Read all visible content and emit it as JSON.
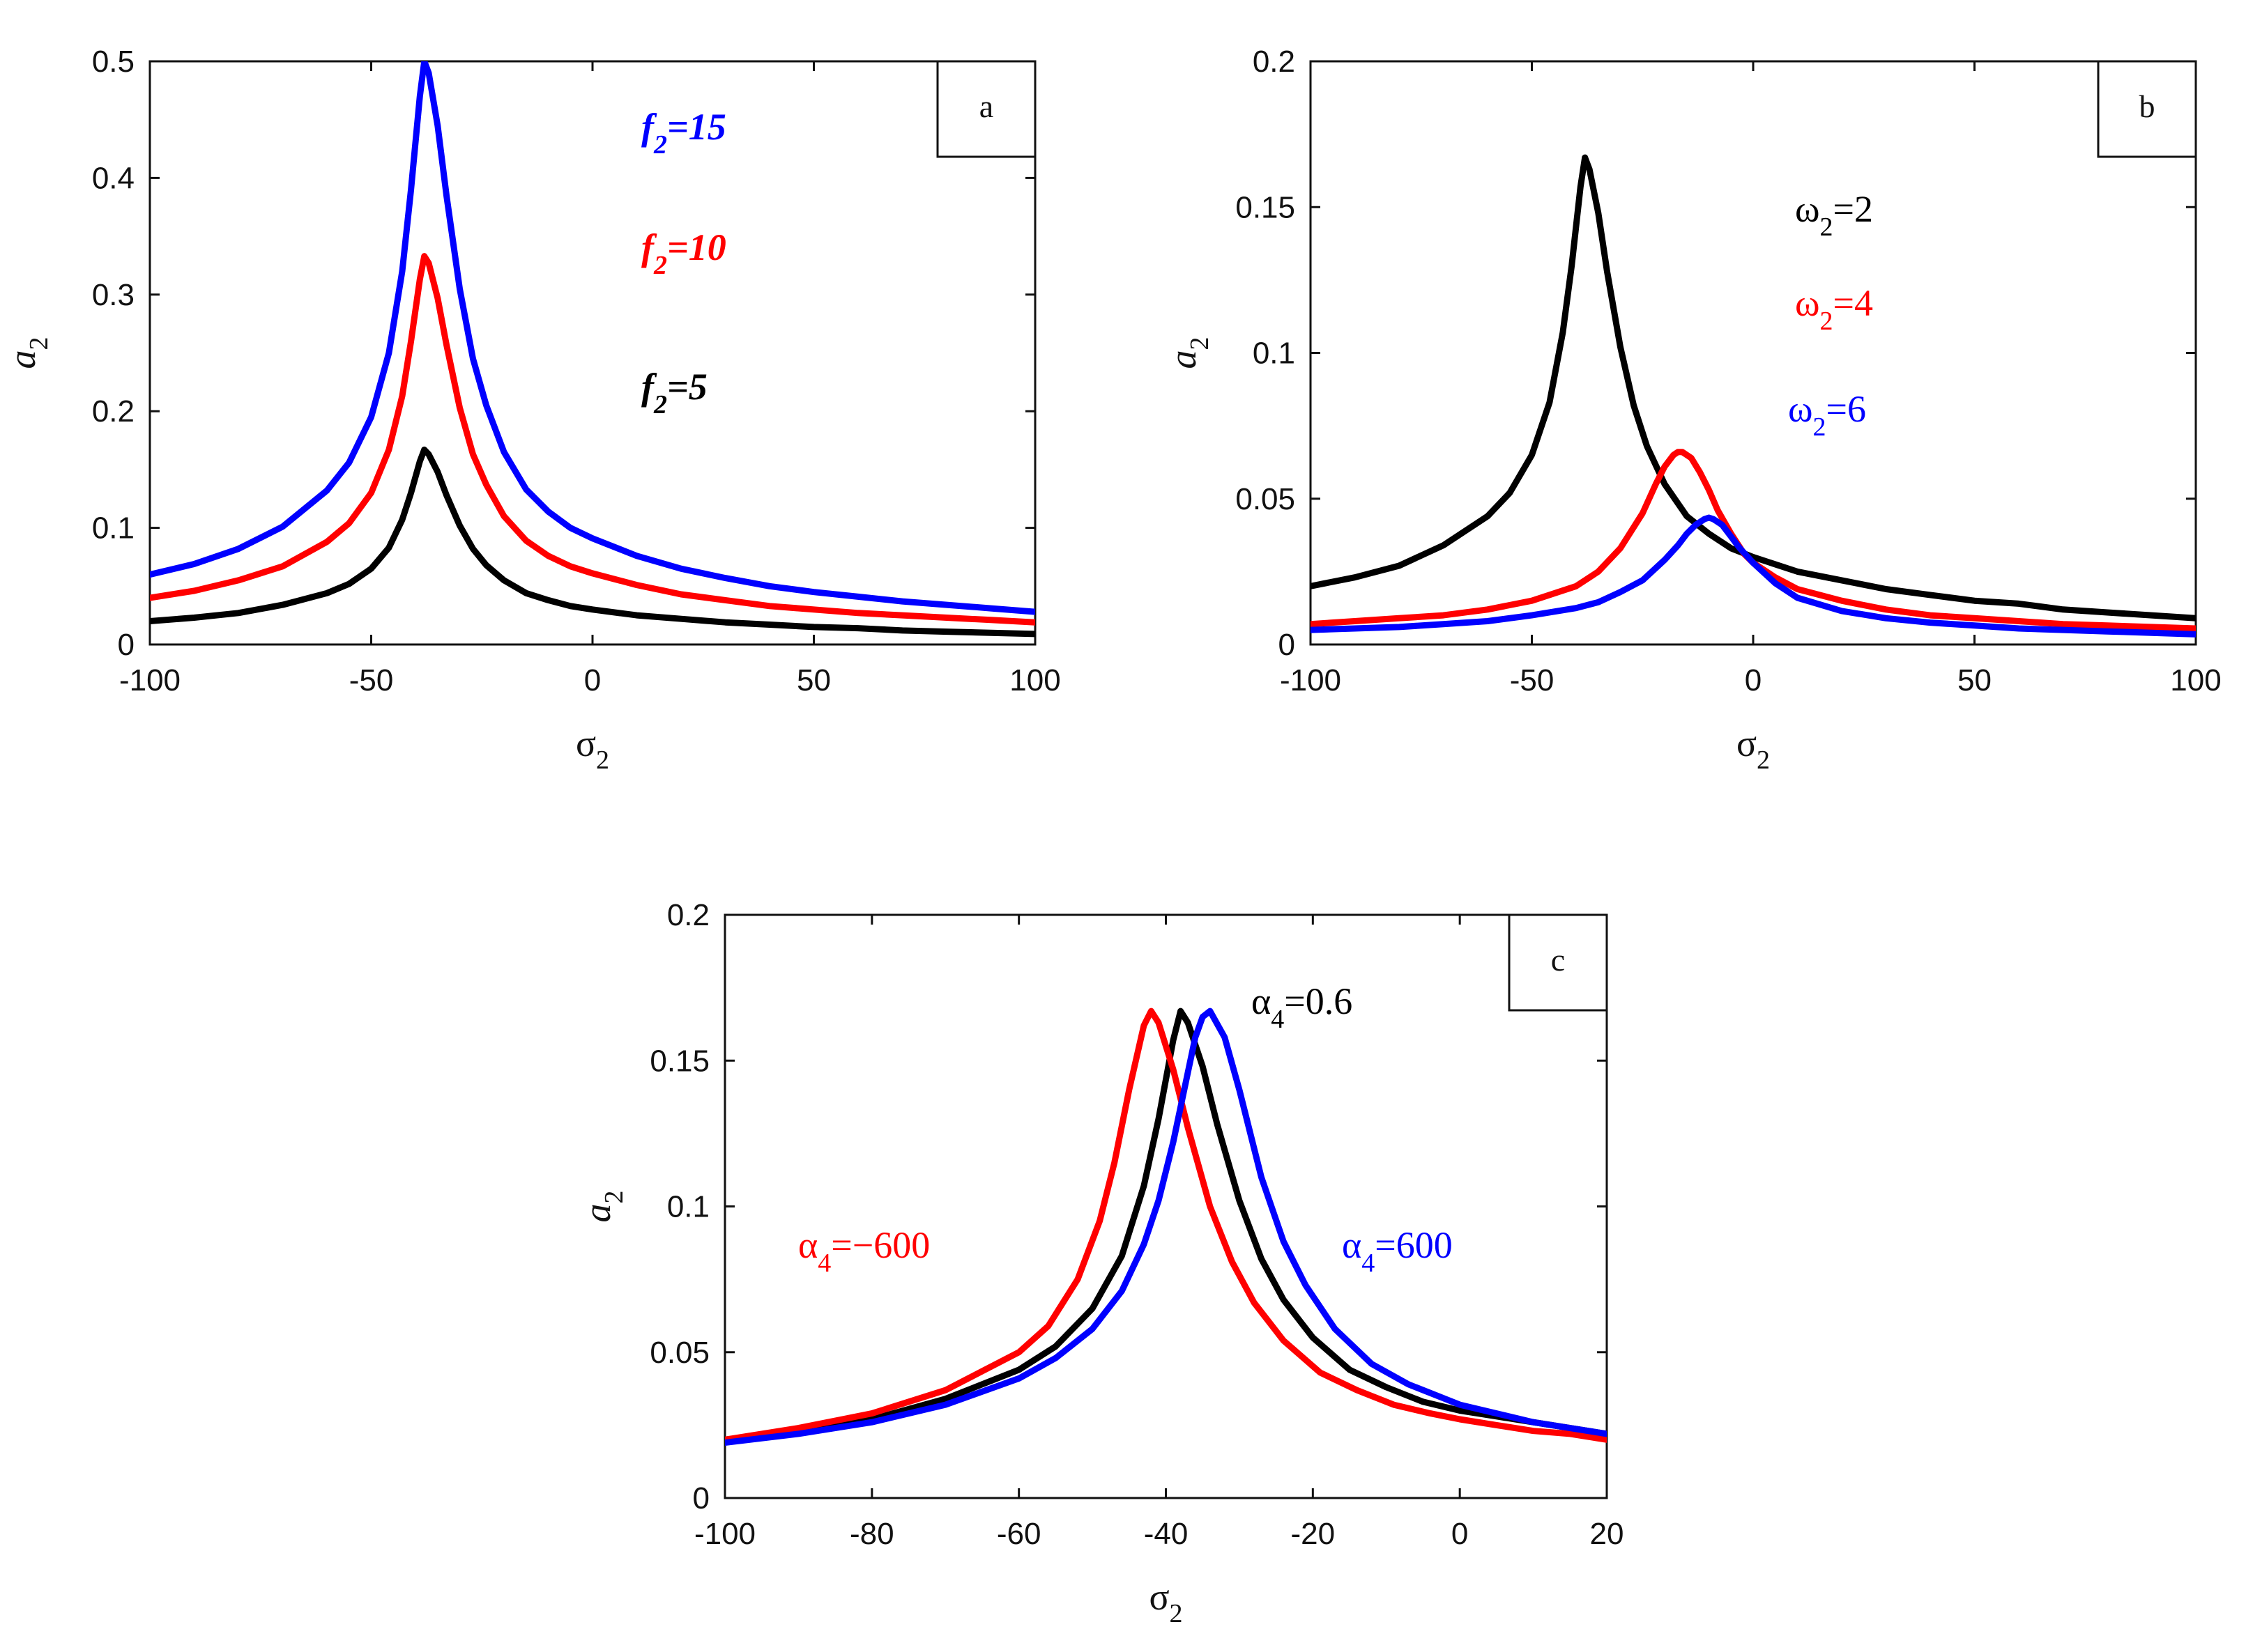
{
  "chart_data": [
    {
      "id": "a",
      "type": "line",
      "panel_label": "a",
      "xlabel": "σ",
      "xlabel_sub": "2",
      "ylabel": "a",
      "ylabel_sub": "2",
      "xlim": [
        -100,
        100
      ],
      "ylim": [
        0,
        0.5
      ],
      "xticks": [
        -100,
        -50,
        0,
        50,
        100
      ],
      "yticks": [
        0,
        0.1,
        0.2,
        0.3,
        0.4,
        0.5
      ],
      "ytick_labels": [
        "0",
        "0.1",
        "0.2",
        "0.3",
        "0.4",
        "0.5"
      ],
      "xtick_labels": [
        "-100",
        "-50",
        "0",
        "50",
        "100"
      ],
      "series": [
        {
          "name": "f2=15",
          "color": "#0000ff",
          "label_main": "f",
          "label_sub": "2",
          "label_rest": "=15",
          "x": [
            -100,
            -90,
            -80,
            -70,
            -60,
            -55,
            -50,
            -46,
            -43,
            -41,
            -39,
            -38,
            -37,
            -35,
            -33,
            -30,
            -27,
            -24,
            -20,
            -15,
            -10,
            -5,
            0,
            10,
            20,
            30,
            40,
            50,
            60,
            70,
            80,
            90,
            100
          ],
          "y": [
            0.06,
            0.069,
            0.082,
            0.101,
            0.132,
            0.156,
            0.195,
            0.25,
            0.32,
            0.39,
            0.47,
            0.5,
            0.49,
            0.445,
            0.385,
            0.305,
            0.245,
            0.205,
            0.165,
            0.133,
            0.114,
            0.1,
            0.091,
            0.076,
            0.065,
            0.057,
            0.05,
            0.045,
            0.041,
            0.037,
            0.034,
            0.031,
            0.028
          ]
        },
        {
          "name": "f2=10",
          "color": "#ff0000",
          "label_main": "f",
          "label_sub": "2",
          "label_rest": "=10",
          "x": [
            -100,
            -90,
            -80,
            -70,
            -60,
            -55,
            -50,
            -46,
            -43,
            -41,
            -39,
            -38,
            -37,
            -35,
            -33,
            -30,
            -27,
            -24,
            -20,
            -15,
            -10,
            -5,
            0,
            10,
            20,
            30,
            40,
            50,
            60,
            70,
            80,
            90,
            100
          ],
          "y": [
            0.04,
            0.046,
            0.055,
            0.067,
            0.088,
            0.104,
            0.13,
            0.167,
            0.213,
            0.26,
            0.313,
            0.333,
            0.327,
            0.297,
            0.257,
            0.203,
            0.163,
            0.137,
            0.11,
            0.089,
            0.076,
            0.067,
            0.061,
            0.051,
            0.043,
            0.038,
            0.033,
            0.03,
            0.027,
            0.025,
            0.023,
            0.021,
            0.019
          ]
        },
        {
          "name": "f2=5",
          "color": "#000000",
          "label_main": "f",
          "label_sub": "2",
          "label_rest": "=5",
          "x": [
            -100,
            -90,
            -80,
            -70,
            -60,
            -55,
            -50,
            -46,
            -43,
            -41,
            -39,
            -38,
            -37,
            -35,
            -33,
            -30,
            -27,
            -24,
            -20,
            -15,
            -10,
            -5,
            0,
            10,
            20,
            30,
            40,
            50,
            60,
            70,
            80,
            90,
            100
          ],
          "y": [
            0.02,
            0.023,
            0.027,
            0.034,
            0.044,
            0.052,
            0.065,
            0.083,
            0.107,
            0.13,
            0.157,
            0.167,
            0.163,
            0.148,
            0.128,
            0.102,
            0.082,
            0.068,
            0.055,
            0.044,
            0.038,
            0.033,
            0.03,
            0.025,
            0.022,
            0.019,
            0.017,
            0.015,
            0.014,
            0.012,
            0.011,
            0.01,
            0.009
          ]
        }
      ]
    },
    {
      "id": "b",
      "type": "line",
      "panel_label": "b",
      "xlabel": "σ",
      "xlabel_sub": "2",
      "ylabel": "a",
      "ylabel_sub": "2",
      "xlim": [
        -100,
        100
      ],
      "ylim": [
        0,
        0.2
      ],
      "xticks": [
        -100,
        -50,
        0,
        50,
        100
      ],
      "yticks": [
        0,
        0.05,
        0.1,
        0.15,
        0.2
      ],
      "ytick_labels": [
        "0",
        "0.05",
        "0.1",
        "0.15",
        "0.2"
      ],
      "xtick_labels": [
        "-100",
        "-50",
        "0",
        "50",
        "100"
      ],
      "series": [
        {
          "name": "ω2=2",
          "color": "#000000",
          "label_main": "ω",
          "label_sub": "2",
          "label_rest": "=2",
          "x": [
            -100,
            -90,
            -80,
            -70,
            -60,
            -55,
            -50,
            -46,
            -43,
            -41,
            -39,
            -38,
            -37,
            -35,
            -33,
            -30,
            -27,
            -24,
            -20,
            -15,
            -10,
            -5,
            0,
            10,
            20,
            30,
            40,
            50,
            60,
            70,
            80,
            90,
            100
          ],
          "y": [
            0.02,
            0.023,
            0.027,
            0.034,
            0.044,
            0.052,
            0.065,
            0.083,
            0.107,
            0.13,
            0.157,
            0.167,
            0.163,
            0.148,
            0.128,
            0.102,
            0.082,
            0.068,
            0.055,
            0.044,
            0.038,
            0.033,
            0.03,
            0.025,
            0.022,
            0.019,
            0.017,
            0.015,
            0.014,
            0.012,
            0.011,
            0.01,
            0.009
          ]
        },
        {
          "name": "ω2=4",
          "color": "#ff0000",
          "label_main": "ω",
          "label_sub": "2",
          "label_rest": "=4",
          "x": [
            -100,
            -90,
            -80,
            -70,
            -60,
            -50,
            -40,
            -35,
            -30,
            -25,
            -22,
            -20,
            -18,
            -17,
            -16,
            -14,
            -12,
            -10,
            -8,
            -5,
            -2,
            0,
            5,
            10,
            20,
            30,
            40,
            50,
            60,
            70,
            80,
            90,
            100
          ],
          "y": [
            0.007,
            0.008,
            0.009,
            0.01,
            0.012,
            0.015,
            0.02,
            0.025,
            0.033,
            0.045,
            0.055,
            0.061,
            0.065,
            0.066,
            0.066,
            0.064,
            0.059,
            0.053,
            0.046,
            0.038,
            0.031,
            0.028,
            0.023,
            0.019,
            0.015,
            0.012,
            0.01,
            0.009,
            0.008,
            0.007,
            0.0065,
            0.006,
            0.0055
          ]
        },
        {
          "name": "ω2=6",
          "color": "#0000ff",
          "label_main": "ω",
          "label_sub": "2",
          "label_rest": "=6",
          "x": [
            -100,
            -90,
            -80,
            -70,
            -60,
            -50,
            -40,
            -35,
            -30,
            -25,
            -20,
            -17,
            -15,
            -13,
            -11,
            -10,
            -9,
            -7,
            -5,
            -3,
            0,
            5,
            10,
            20,
            30,
            40,
            50,
            60,
            70,
            80,
            90,
            100
          ],
          "y": [
            0.005,
            0.0055,
            0.006,
            0.007,
            0.008,
            0.01,
            0.0125,
            0.0145,
            0.018,
            0.022,
            0.029,
            0.034,
            0.038,
            0.041,
            0.043,
            0.0435,
            0.043,
            0.041,
            0.037,
            0.033,
            0.028,
            0.021,
            0.016,
            0.0115,
            0.009,
            0.0075,
            0.0065,
            0.0055,
            0.005,
            0.0045,
            0.004,
            0.0035
          ]
        }
      ]
    },
    {
      "id": "c",
      "type": "line",
      "panel_label": "c",
      "xlabel": "σ",
      "xlabel_sub": "2",
      "ylabel": "a",
      "ylabel_sub": "2",
      "xlim": [
        -100,
        20
      ],
      "ylim": [
        0,
        0.2
      ],
      "xticks": [
        -100,
        -80,
        -60,
        -40,
        -20,
        0,
        20
      ],
      "yticks": [
        0,
        0.05,
        0.1,
        0.15,
        0.2
      ],
      "ytick_labels": [
        "0",
        "0.05",
        "0.1",
        "0.15",
        "0.2"
      ],
      "xtick_labels": [
        "-100",
        "-80",
        "-60",
        "-40",
        "-20",
        "0",
        "20"
      ],
      "series": [
        {
          "name": "α4=0.6",
          "color": "#000000",
          "label_main": "α",
          "label_sub": "4",
          "label_rest": "=0.6",
          "x": [
            -100,
            -90,
            -80,
            -70,
            -60,
            -55,
            -50,
            -46,
            -43,
            -41,
            -39,
            -38,
            -37,
            -35,
            -33,
            -30,
            -27,
            -24,
            -20,
            -15,
            -10,
            -5,
            0,
            5,
            10,
            15,
            20
          ],
          "y": [
            0.02,
            0.023,
            0.027,
            0.034,
            0.044,
            0.052,
            0.065,
            0.083,
            0.107,
            0.13,
            0.157,
            0.167,
            0.163,
            0.148,
            0.128,
            0.102,
            0.082,
            0.068,
            0.055,
            0.044,
            0.038,
            0.033,
            0.03,
            0.028,
            0.026,
            0.024,
            0.022
          ]
        },
        {
          "name": "α4=-600",
          "color": "#ff0000",
          "label_main": "α",
          "label_sub": "4",
          "label_rest": "=−600",
          "x": [
            -100,
            -90,
            -80,
            -70,
            -60,
            -56,
            -52,
            -49,
            -47,
            -45,
            -43,
            -42,
            -41,
            -39,
            -37,
            -34,
            -31,
            -28,
            -24,
            -19,
            -14,
            -9,
            -4,
            0,
            5,
            10,
            15,
            20
          ],
          "y": [
            0.02,
            0.024,
            0.029,
            0.037,
            0.05,
            0.059,
            0.075,
            0.095,
            0.115,
            0.14,
            0.162,
            0.167,
            0.163,
            0.147,
            0.127,
            0.1,
            0.081,
            0.067,
            0.054,
            0.043,
            0.037,
            0.032,
            0.029,
            0.027,
            0.025,
            0.023,
            0.022,
            0.02
          ]
        },
        {
          "name": "α4=600",
          "color": "#0000ff",
          "label_main": "α",
          "label_sub": "4",
          "label_rest": "=600",
          "x": [
            -100,
            -90,
            -80,
            -70,
            -60,
            -55,
            -50,
            -46,
            -43,
            -41,
            -39,
            -37,
            -36,
            -35,
            -34,
            -32,
            -30,
            -27,
            -24,
            -21,
            -17,
            -12,
            -7,
            -2,
            0,
            5,
            10,
            15,
            20
          ],
          "y": [
            0.019,
            0.022,
            0.026,
            0.032,
            0.041,
            0.048,
            0.058,
            0.071,
            0.087,
            0.102,
            0.122,
            0.146,
            0.158,
            0.165,
            0.167,
            0.158,
            0.14,
            0.11,
            0.088,
            0.073,
            0.058,
            0.046,
            0.039,
            0.034,
            0.032,
            0.029,
            0.026,
            0.024,
            0.022
          ]
        }
      ]
    }
  ]
}
